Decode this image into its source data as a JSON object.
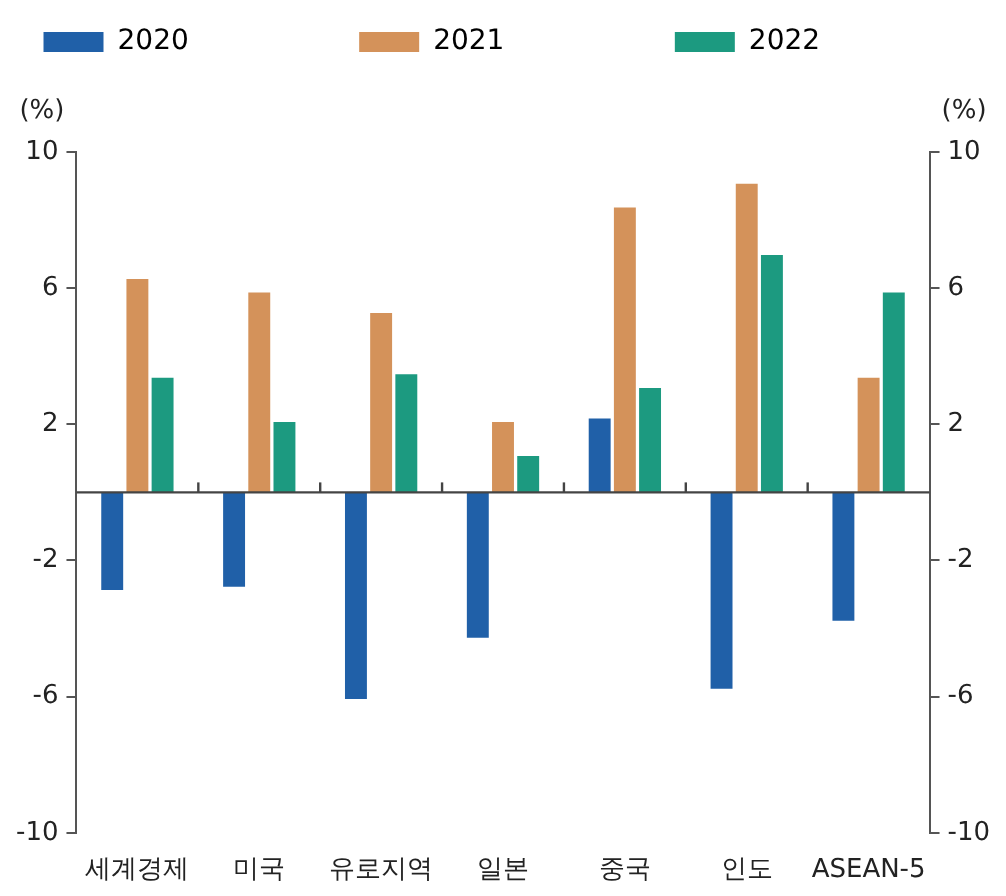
{
  "chart_data": {
    "type": "bar",
    "ylabel": "(%)",
    "y2label": "(%)",
    "categories": [
      "세계경제",
      "미국",
      "유로지역",
      "일본",
      "중국",
      "인도",
      "ASEAN-5"
    ],
    "series": [
      {
        "name": "2020",
        "color": "#2060a8",
        "values": [
          -2.9,
          -2.8,
          -6.1,
          -4.3,
          2.2,
          -5.8,
          -3.8
        ]
      },
      {
        "name": "2021",
        "color": "#d4925a",
        "values": [
          6.3,
          5.9,
          5.3,
          2.1,
          8.4,
          9.1,
          3.4
        ]
      },
      {
        "name": "2022",
        "color": "#1c9a80",
        "values": [
          3.4,
          2.1,
          3.5,
          1.1,
          3.1,
          7.0,
          5.9
        ]
      }
    ],
    "ylim": [
      -10,
      10
    ],
    "yticks": [
      -10,
      -6,
      -2,
      2,
      6,
      10
    ],
    "y2lim": [
      -10,
      10
    ],
    "y2ticks": [
      -10,
      -6,
      -2,
      2,
      6,
      10
    ],
    "grid": false,
    "legend": "top"
  }
}
